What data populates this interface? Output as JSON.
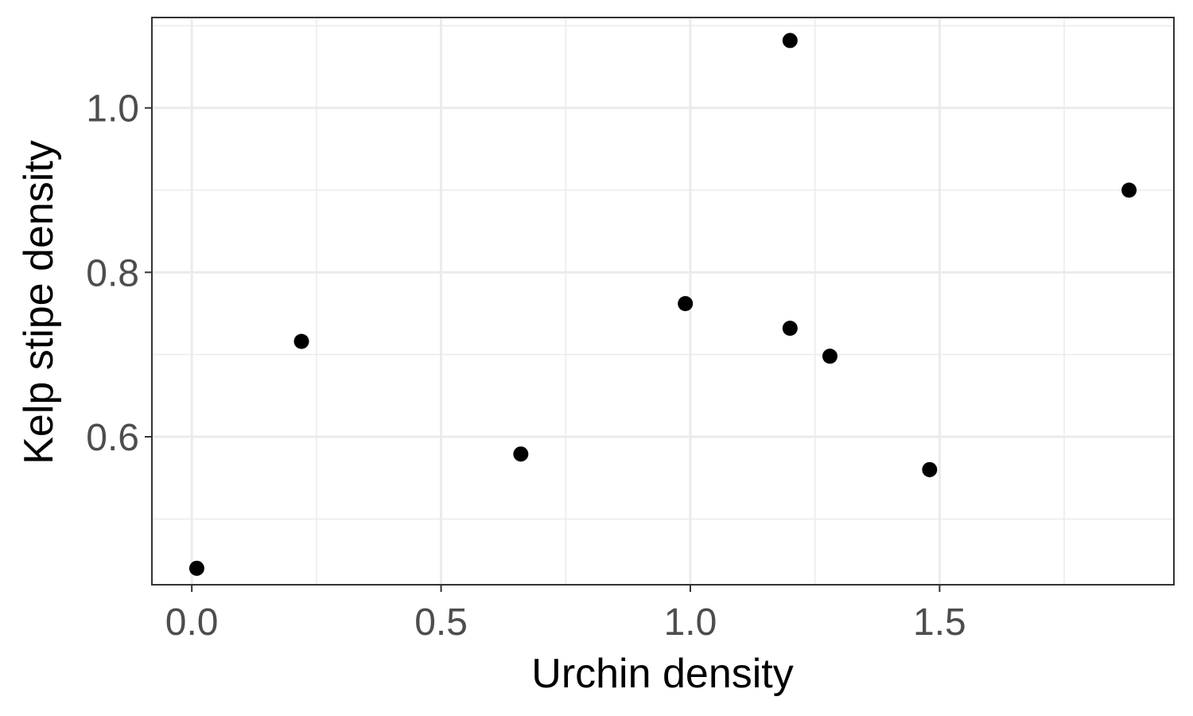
{
  "chart_data": {
    "type": "scatter",
    "title": "",
    "xlabel": "Urchin density",
    "ylabel": "Kelp stipe density",
    "xlim": [
      -0.08,
      1.97
    ],
    "ylim": [
      0.42,
      1.11
    ],
    "x_ticks": [
      0.0,
      0.5,
      1.0,
      1.5
    ],
    "x_tick_labels": [
      "0.0",
      "0.5",
      "1.0",
      "1.5"
    ],
    "x_minor_ticks": [
      0.25,
      0.75,
      1.25,
      1.75
    ],
    "y_ticks": [
      0.6,
      0.8,
      1.0
    ],
    "y_tick_labels": [
      "0.6",
      "0.8",
      "1.0"
    ],
    "y_minor_ticks": [
      0.5,
      0.7,
      0.9,
      1.1
    ],
    "grid": true,
    "point_color": "#000000",
    "points": [
      {
        "x": 0.01,
        "y": 0.44
      },
      {
        "x": 0.22,
        "y": 0.716
      },
      {
        "x": 0.66,
        "y": 0.579
      },
      {
        "x": 0.99,
        "y": 0.762
      },
      {
        "x": 1.2,
        "y": 1.082
      },
      {
        "x": 1.2,
        "y": 0.732
      },
      {
        "x": 1.28,
        "y": 0.698
      },
      {
        "x": 1.48,
        "y": 0.56
      },
      {
        "x": 1.88,
        "y": 0.9
      }
    ]
  }
}
